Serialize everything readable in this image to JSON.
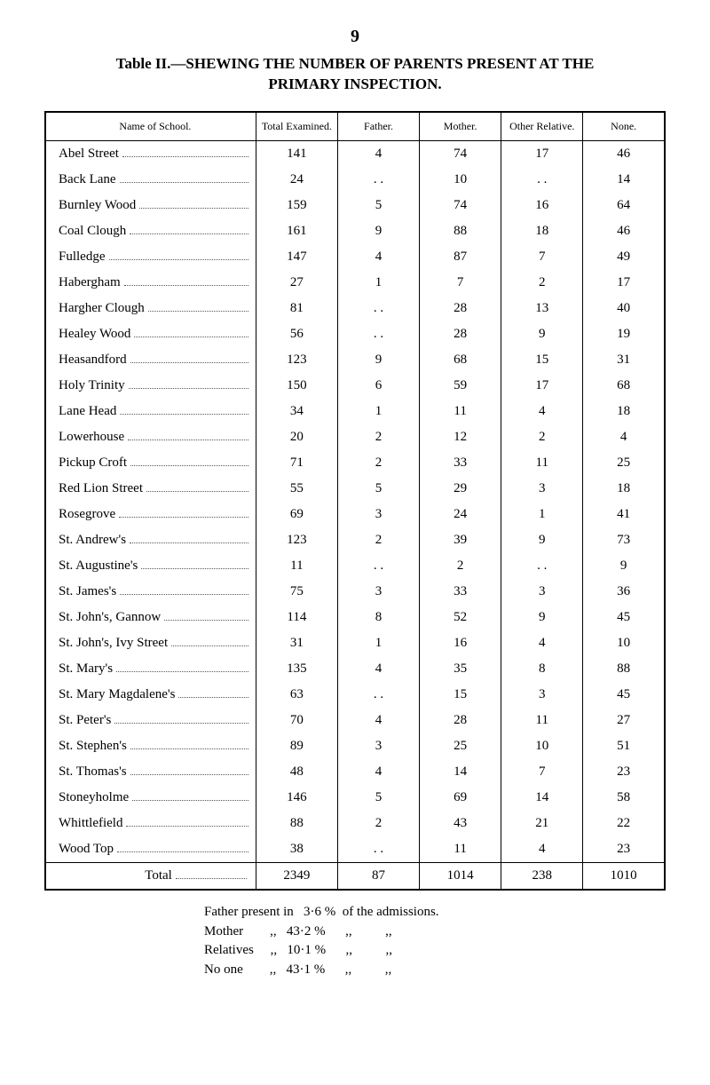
{
  "page_number": "9",
  "title_line1": "Table II.—SHEWING THE NUMBER OF PARENTS PRESENT AT THE",
  "title_line2": "PRIMARY INSPECTION.",
  "columns": [
    "Name of School.",
    "Total Examined.",
    "Father.",
    "Mother.",
    "Other Relative.",
    "None."
  ],
  "rows": [
    {
      "name": "Abel Street",
      "exam": "141",
      "father": "4",
      "mother": "74",
      "other": "17",
      "none": "46"
    },
    {
      "name": "Back Lane",
      "exam": "24",
      "father": ". .",
      "mother": "10",
      "other": ". .",
      "none": "14"
    },
    {
      "name": "Burnley Wood",
      "exam": "159",
      "father": "5",
      "mother": "74",
      "other": "16",
      "none": "64"
    },
    {
      "name": "Coal Clough",
      "exam": "161",
      "father": "9",
      "mother": "88",
      "other": "18",
      "none": "46"
    },
    {
      "name": "Fulledge",
      "exam": "147",
      "father": "4",
      "mother": "87",
      "other": "7",
      "none": "49"
    },
    {
      "name": "Habergham",
      "exam": "27",
      "father": "1",
      "mother": "7",
      "other": "2",
      "none": "17"
    },
    {
      "name": "Hargher Clough",
      "exam": "81",
      "father": ". .",
      "mother": "28",
      "other": "13",
      "none": "40"
    },
    {
      "name": "Healey Wood",
      "exam": "56",
      "father": ". .",
      "mother": "28",
      "other": "9",
      "none": "19"
    },
    {
      "name": "Heasandford",
      "exam": "123",
      "father": "9",
      "mother": "68",
      "other": "15",
      "none": "31"
    },
    {
      "name": "Holy Trinity",
      "exam": "150",
      "father": "6",
      "mother": "59",
      "other": "17",
      "none": "68"
    },
    {
      "name": "Lane Head",
      "exam": "34",
      "father": "1",
      "mother": "11",
      "other": "4",
      "none": "18"
    },
    {
      "name": "Lowerhouse",
      "exam": "20",
      "father": "2",
      "mother": "12",
      "other": "2",
      "none": "4"
    },
    {
      "name": "Pickup Croft",
      "exam": "71",
      "father": "2",
      "mother": "33",
      "other": "11",
      "none": "25"
    },
    {
      "name": "Red Lion Street",
      "exam": "55",
      "father": "5",
      "mother": "29",
      "other": "3",
      "none": "18"
    },
    {
      "name": "Rosegrove",
      "exam": "69",
      "father": "3",
      "mother": "24",
      "other": "1",
      "none": "41"
    },
    {
      "name": "St. Andrew's",
      "exam": "123",
      "father": "2",
      "mother": "39",
      "other": "9",
      "none": "73"
    },
    {
      "name": "St. Augustine's",
      "exam": "11",
      "father": ". .",
      "mother": "2",
      "other": ". .",
      "none": "9"
    },
    {
      "name": "St. James's",
      "exam": "75",
      "father": "3",
      "mother": "33",
      "other": "3",
      "none": "36"
    },
    {
      "name": "St. John's, Gannow",
      "exam": "114",
      "father": "8",
      "mother": "52",
      "other": "9",
      "none": "45"
    },
    {
      "name": "St. John's, Ivy Street",
      "exam": "31",
      "father": "1",
      "mother": "16",
      "other": "4",
      "none": "10"
    },
    {
      "name": "St. Mary's",
      "exam": "135",
      "father": "4",
      "mother": "35",
      "other": "8",
      "none": "88"
    },
    {
      "name": "St. Mary Magdalene's",
      "exam": "63",
      "father": ". .",
      "mother": "15",
      "other": "3",
      "none": "45"
    },
    {
      "name": "St. Peter's",
      "exam": "70",
      "father": "4",
      "mother": "28",
      "other": "11",
      "none": "27"
    },
    {
      "name": "St. Stephen's",
      "exam": "89",
      "father": "3",
      "mother": "25",
      "other": "10",
      "none": "51"
    },
    {
      "name": "St. Thomas's",
      "exam": "48",
      "father": "4",
      "mother": "14",
      "other": "7",
      "none": "23"
    },
    {
      "name": "Stoneyholme",
      "exam": "146",
      "father": "5",
      "mother": "69",
      "other": "14",
      "none": "58"
    },
    {
      "name": "Whittlefield",
      "exam": "88",
      "father": "2",
      "mother": "43",
      "other": "21",
      "none": "22"
    },
    {
      "name": "Wood Top",
      "exam": "38",
      "father": ". .",
      "mother": "11",
      "other": "4",
      "none": "23"
    }
  ],
  "total": {
    "label": "Total",
    "exam": "2349",
    "father": "87",
    "mother": "1014",
    "other": "238",
    "none": "1010"
  },
  "footnote": {
    "line1": "Father present in   3·6 %  of the admissions.",
    "line2": "Mother        ,,   43·2 %      ,,          ,,",
    "line3": "Relatives     ,,   10·1 %      ,,          ,,",
    "line4": "No one        ,,   43·1 %      ,,          ,,"
  }
}
